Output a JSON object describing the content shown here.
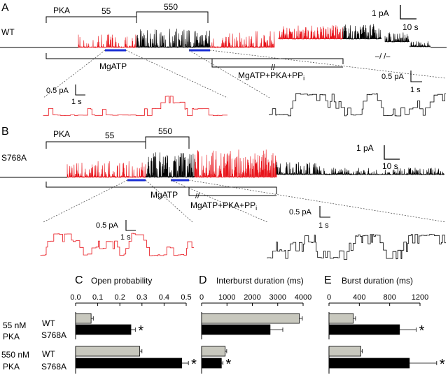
{
  "panels": {
    "a": "A",
    "b": "B",
    "c": "C",
    "d": "D",
    "e": "E"
  },
  "traceA": {
    "row_label": "WT",
    "pka_label": "PKA",
    "pka_low": "55",
    "pka_high": "550",
    "scale_current": "1 pA",
    "scale_time": "10 s",
    "mgatp_label": "MgATP",
    "mix_label": "MgATP+PKA+PP",
    "mix_subscript": "i",
    "inset_left_current": "0.5 pA",
    "inset_left_time": "1 s",
    "inset_right_current": "0.5 pA",
    "inset_right_time": "1 s"
  },
  "traceB": {
    "row_label": "S768A",
    "pka_label": "PKA",
    "pka_low": "55",
    "pka_high": "550",
    "scale_current": "1 pA",
    "scale_time": "10 s",
    "mgatp_label": "MgATP",
    "mix_label": "MgATP+PKA+PP",
    "mix_subscript": "i",
    "inset_left_current": "0.5 pA",
    "inset_left_time": "1 s",
    "inset_right_current": "0.5 pA",
    "inset_right_time": "1 s"
  },
  "row_labels": {
    "low_conc": "55 nM",
    "high_conc": "550 nM",
    "pka": "PKA",
    "wt": "WT",
    "mutant": "S768A"
  },
  "colors": {
    "wt_bar": "#c8c8be",
    "mutant_bar": "#000000",
    "trace_red": "#e8141b",
    "trace_black": "#000000",
    "marker_blue": "#1a2fd6"
  },
  "significance_marker": "*",
  "chart_data": [
    {
      "type": "bar",
      "orientation": "horizontal",
      "title": "Open probability",
      "panel": "C",
      "categories": [
        "55 nM PKA WT",
        "55 nM PKA S768A",
        "550 nM PKA WT",
        "550 nM PKA S768A"
      ],
      "values": [
        0.07,
        0.25,
        0.29,
        0.48
      ],
      "errors": [
        0.01,
        0.02,
        0.01,
        0.03
      ],
      "significant": [
        false,
        true,
        false,
        true
      ],
      "xlim": [
        0,
        0.5
      ],
      "ticks": [
        "0.0",
        "0.1",
        "0.2",
        "0.3",
        "0.4",
        "0.5"
      ],
      "tick_values": [
        0,
        0.1,
        0.2,
        0.3,
        0.4,
        0.5
      ]
    },
    {
      "type": "bar",
      "orientation": "horizontal",
      "title": "Interburst duration (ms)",
      "panel": "D",
      "categories": [
        "55 nM PKA WT",
        "55 nM PKA S768A",
        "550 nM PKA WT",
        "550 nM PKA S768A"
      ],
      "values": [
        3850,
        2700,
        930,
        780
      ],
      "errors": [
        120,
        500,
        60,
        60
      ],
      "significant": [
        false,
        false,
        false,
        true
      ],
      "xlim": [
        0,
        4000
      ],
      "ticks": [
        "0",
        "1000",
        "2000",
        "3000",
        "4000"
      ],
      "tick_values": [
        0,
        1000,
        2000,
        3000,
        4000
      ]
    },
    {
      "type": "bar",
      "orientation": "horizontal",
      "title": "Burst duration (ms)",
      "panel": "E",
      "categories": [
        "55 nM PKA WT",
        "55 nM PKA S768A",
        "550 nM PKA WT",
        "550 nM PKA S768A"
      ],
      "values": [
        320,
        930,
        420,
        1060
      ],
      "errors": [
        30,
        220,
        20,
        360
      ],
      "significant": [
        false,
        true,
        false,
        true
      ],
      "xlim": [
        0,
        1200
      ],
      "ticks": [
        "0",
        "400",
        "800",
        "1200"
      ],
      "tick_values": [
        0,
        400,
        800,
        1200
      ]
    }
  ]
}
